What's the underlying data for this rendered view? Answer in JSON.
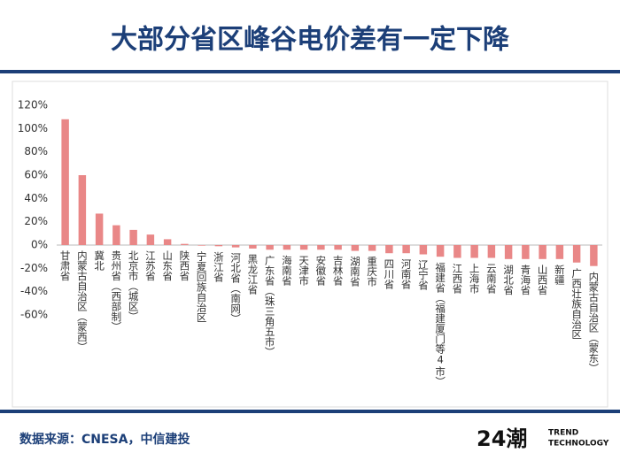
{
  "header": {
    "title": "大部分省区峰谷电价差有一定下降"
  },
  "chart_data": {
    "type": "bar",
    "categories": [
      "甘肃省",
      "内蒙古自治区（蒙西）",
      "冀北",
      "贵州省（西部制）",
      "北京市（城区）",
      "江苏省",
      "山东省",
      "陕西省",
      "宁夏回族自治区",
      "浙江省",
      "河北省（南网）",
      "黑龙江省",
      "广东省（珠三角五市）",
      "海南省",
      "天津市",
      "安徽省",
      "吉林省",
      "湖南省",
      "重庆市",
      "四川省",
      "河南省",
      "辽宁省",
      "福建省（福建厦门等4市）",
      "江西省",
      "上海市",
      "云南省",
      "湖北省",
      "青海省",
      "山西省",
      "新疆",
      "广西壮族自治区",
      "内蒙古自治区（蒙东）"
    ],
    "values": [
      108,
      60,
      27,
      17,
      13,
      9,
      5,
      1,
      -0.5,
      -1,
      -2,
      -3,
      -4,
      -4,
      -4,
      -4,
      -4,
      -5,
      -5,
      -7,
      -7,
      -8,
      -10,
      -11,
      -11,
      -11,
      -12,
      -12,
      -12,
      -12,
      -15,
      -18
    ],
    "color": "#e98787",
    "ylim": [
      -60,
      120
    ],
    "yticks": [
      {
        "value": -60,
        "label": "-60%"
      },
      {
        "value": -40,
        "label": "-40%"
      },
      {
        "value": -20,
        "label": "-20%"
      },
      {
        "value": 0,
        "label": "0%"
      },
      {
        "value": 20,
        "label": "20%"
      },
      {
        "value": 40,
        "label": "40%"
      },
      {
        "value": 60,
        "label": "60%"
      },
      {
        "value": 80,
        "label": "80%"
      },
      {
        "value": 100,
        "label": "100%"
      },
      {
        "value": 120,
        "label": "120%"
      }
    ],
    "grid": false
  },
  "footer": {
    "source": "数据来源：CNESA，中信建投",
    "logo": "24潮",
    "logo_line1": "TREND",
    "logo_line2": "TECHNOLOGY"
  }
}
